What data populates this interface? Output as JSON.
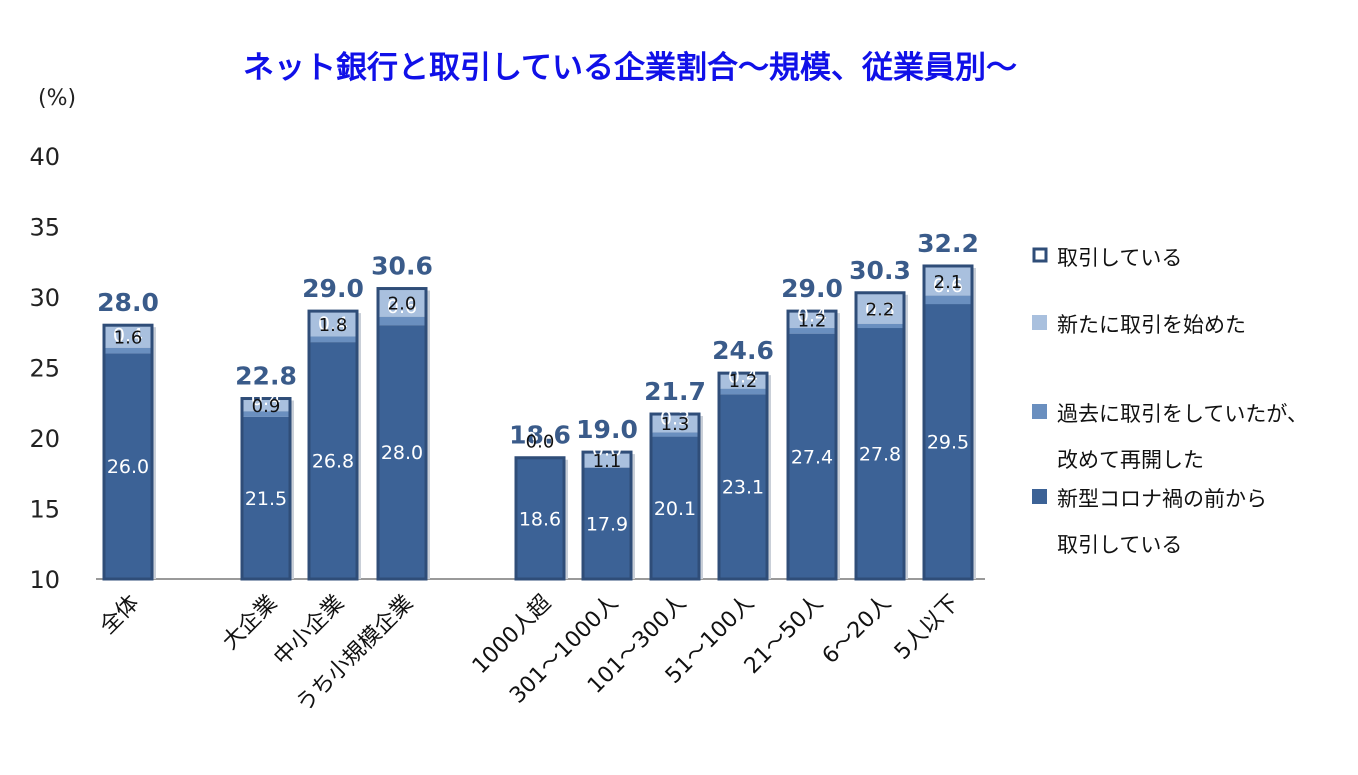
{
  "chart_data": {
    "type": "bar",
    "title": "ネット銀行と取引している企業割合～規模、従業員別～",
    "unit_label": "(%)",
    "ylim": [
      10,
      40
    ],
    "yticks": [
      "10",
      "15",
      "20",
      "25",
      "30",
      "35",
      "40"
    ],
    "categories": [
      "全体",
      "大企業",
      "中小企業",
      "うち小規模企業",
      "1000人超",
      "301～1000人",
      "101～300人",
      "51～100人",
      "21～50人",
      "6～20人",
      "5人以下"
    ],
    "totals": [
      28.0,
      22.8,
      29.0,
      30.6,
      18.6,
      19.0,
      21.7,
      24.6,
      29.0,
      30.3,
      32.2
    ],
    "total_labels": [
      "28.0",
      "22.8",
      "29.0",
      "30.6",
      "18.6",
      "19.0",
      "21.7",
      "24.6",
      "29.0",
      "30.3",
      "32.2"
    ],
    "series": [
      {
        "name": "新型コロナ禍の前から取引している",
        "color": "#3c6296",
        "values": [
          26.0,
          21.5,
          26.8,
          28.0,
          18.6,
          17.9,
          20.1,
          23.1,
          27.4,
          27.8,
          29.5
        ],
        "labels": [
          "26.0",
          "21.5",
          "26.8",
          "28.0",
          "18.6",
          "17.9",
          "20.1",
          "23.1",
          "27.4",
          "27.8",
          "29.5"
        ]
      },
      {
        "name": "過去に取引をしていたが、改めて再開した",
        "color": "#6a8fbf",
        "values": [
          0.4,
          0.4,
          0.4,
          0.6,
          0.0,
          0.0,
          0.3,
          0.4,
          0.4,
          0.3,
          0.6
        ],
        "labels": [
          "0.4",
          "0.4",
          "0.4",
          "0.6",
          "0.0",
          "0.0",
          "0.3",
          "0.4",
          "0.4",
          "0.3",
          "0.6"
        ]
      },
      {
        "name": "新たに取引を始めた",
        "color": "#a9c0de",
        "values": [
          1.6,
          0.9,
          1.8,
          2.0,
          0.0,
          1.1,
          1.3,
          1.2,
          1.2,
          2.2,
          2.1
        ],
        "labels": [
          "1.6",
          "0.9",
          "1.8",
          "2.0",
          "0.0",
          "1.1",
          "1.3",
          "1.2",
          "1.2",
          "2.2",
          "2.1"
        ]
      }
    ],
    "legend": [
      {
        "lines": [
          "取引している"
        ],
        "style": "outline",
        "color": "#2f4d78"
      },
      {
        "lines": [
          "新たに取引を始めた"
        ],
        "style": "fill",
        "color": "#a9c0de"
      },
      {
        "lines": [
          "過去に取引をしていたが、",
          "改めて再開した"
        ],
        "style": "fill",
        "color": "#6a8fbf"
      },
      {
        "lines": [
          "新型コロナ禍の前から",
          "取引している"
        ],
        "style": "fill",
        "color": "#3c6296"
      }
    ],
    "legend_position": "right",
    "grid": false
  }
}
